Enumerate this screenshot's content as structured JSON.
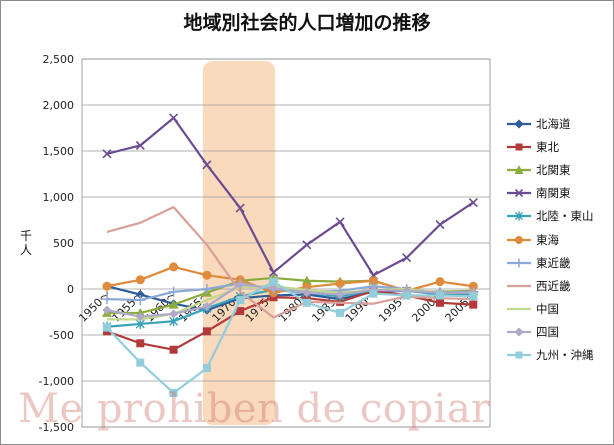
{
  "chart_data": {
    "type": "line",
    "title": "地域別社会的人口増加の推移",
    "ylabel": "千人",
    "xlabel": "",
    "categories": [
      "1950～",
      "1955～",
      "1960～",
      "1965～",
      "1970～",
      "1975～",
      "1980～",
      "1985～",
      "1990～",
      "1995～",
      "2000～",
      "2005～"
    ],
    "yticks": [
      "2,500",
      "2,000",
      "1,500",
      "1,000",
      "500",
      "0",
      "-500",
      "-1,000",
      "-1,500"
    ],
    "ylim": [
      -1500,
      2500
    ],
    "grid": true,
    "legend_position": "right",
    "highlight_range": [
      "1965～",
      "1970～"
    ],
    "highlight_color": "#f8d4b0",
    "series": [
      {
        "name": "北海道",
        "color": "#2e5c9a",
        "marker": "diamond",
        "values": [
          30,
          -60,
          -160,
          -230,
          -100,
          -70,
          -60,
          -110,
          -30,
          -20,
          -50,
          -60
        ]
      },
      {
        "name": "東北",
        "color": "#b23a3a",
        "marker": "square",
        "values": [
          -460,
          -590,
          -660,
          -460,
          -240,
          -90,
          -100,
          -140,
          -20,
          -70,
          -150,
          -170
        ]
      },
      {
        "name": "北関東",
        "color": "#8aac3c",
        "marker": "triangle",
        "values": [
          -260,
          -260,
          -170,
          -40,
          90,
          120,
          90,
          80,
          90,
          -20,
          -30,
          -20
        ]
      },
      {
        "name": "南関東",
        "color": "#6a4c93",
        "marker": "x",
        "values": [
          1470,
          1560,
          1860,
          1350,
          880,
          180,
          480,
          730,
          150,
          340,
          700,
          940
        ]
      },
      {
        "name": "北陸・東山",
        "color": "#3aa2b8",
        "marker": "asterisk",
        "values": [
          -410,
          -380,
          -350,
          -210,
          -80,
          -10,
          -40,
          -80,
          -10,
          -20,
          -60,
          -70
        ]
      },
      {
        "name": "東海",
        "color": "#e08a3c",
        "marker": "circle",
        "values": [
          30,
          100,
          240,
          150,
          100,
          -40,
          20,
          60,
          90,
          -20,
          80,
          30
        ]
      },
      {
        "name": "東近畿",
        "color": "#8aa8d8",
        "marker": "plus",
        "values": [
          -110,
          -120,
          -30,
          0,
          60,
          0,
          -30,
          -20,
          30,
          0,
          -40,
          -30
        ]
      },
      {
        "name": "西近畿",
        "color": "#d9a09a",
        "marker": "none",
        "values": [
          620,
          720,
          890,
          480,
          -30,
          -310,
          -140,
          -150,
          -160,
          -80,
          -100,
          -110
        ]
      },
      {
        "name": "中国",
        "color": "#c2d88a",
        "marker": "none",
        "values": [
          -330,
          -330,
          -270,
          -120,
          20,
          30,
          -10,
          -40,
          -10,
          0,
          -40,
          -40
        ]
      },
      {
        "name": "四国",
        "color": "#b0a8c8",
        "marker": "diamond",
        "values": [
          -230,
          -300,
          -270,
          -190,
          50,
          10,
          -40,
          -60,
          -10,
          -20,
          -40,
          -40
        ]
      },
      {
        "name": "九州・沖縄",
        "color": "#92cddc",
        "marker": "square",
        "values": [
          -420,
          -800,
          -1130,
          -860,
          -120,
          80,
          -150,
          -260,
          -50,
          -70,
          -70,
          -80
        ]
      }
    ]
  },
  "watermark": "Me prohiben de copiar"
}
